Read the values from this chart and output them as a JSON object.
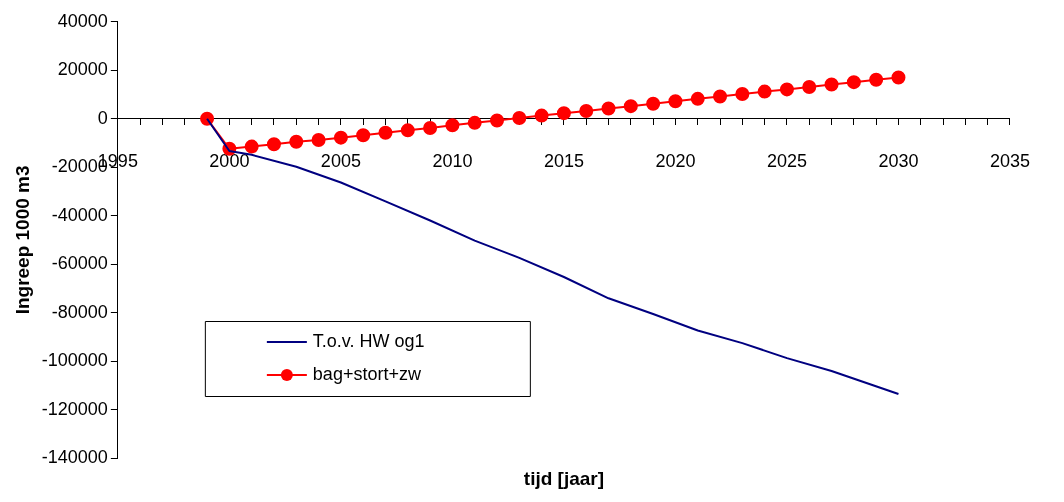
{
  "chart_data": {
    "type": "line",
    "xlabel": "tijd [jaar]",
    "ylabel": "Ingreep 1000 m3",
    "xlim": [
      1995,
      2035
    ],
    "xticks": [
      1995,
      {
        "value": 1996,
        "label": null
      },
      {
        "value": 1997,
        "label": null
      },
      {
        "value": 1998,
        "label": null
      },
      {
        "value": 1999,
        "label": null
      },
      2000,
      {
        "value": 2001,
        "label": null
      },
      {
        "value": 2002,
        "label": null
      },
      {
        "value": 2003,
        "label": null
      },
      {
        "value": 2004,
        "label": null
      },
      2005,
      {
        "value": 2006,
        "label": null
      },
      {
        "value": 2007,
        "label": null
      },
      {
        "value": 2008,
        "label": null
      },
      {
        "value": 2009,
        "label": null
      },
      2010,
      {
        "value": 2011,
        "label": null
      },
      {
        "value": 2012,
        "label": null
      },
      {
        "value": 2013,
        "label": null
      },
      {
        "value": 2014,
        "label": null
      },
      2015,
      {
        "value": 2016,
        "label": null
      },
      {
        "value": 2017,
        "label": null
      },
      {
        "value": 2018,
        "label": null
      },
      {
        "value": 2019,
        "label": null
      },
      2020,
      {
        "value": 2021,
        "label": null
      },
      {
        "value": 2022,
        "label": null
      },
      {
        "value": 2023,
        "label": null
      },
      {
        "value": 2024,
        "label": null
      },
      2025,
      {
        "value": 2026,
        "label": null
      },
      {
        "value": 2027,
        "label": null
      },
      {
        "value": 2028,
        "label": null
      },
      {
        "value": 2029,
        "label": null
      },
      2030,
      {
        "value": 2031,
        "label": null
      },
      {
        "value": 2032,
        "label": null
      },
      {
        "value": 2033,
        "label": null
      },
      {
        "value": 2034,
        "label": null
      },
      2035
    ],
    "ylim": [
      -140000,
      40000
    ],
    "yticks": [
      -140000,
      -120000,
      -100000,
      -80000,
      -60000,
      -40000,
      -20000,
      0,
      20000,
      40000
    ],
    "grid": false,
    "legend": "bottom left",
    "series": [
      {
        "name": "T.o.v. HW og1",
        "color": "#000080",
        "marker": "none",
        "x": [
          1999,
          2000,
          2001,
          2003,
          2005,
          2007,
          2009,
          2011,
          2013,
          2015,
          2017,
          2019,
          2021,
          2023,
          2025,
          2027,
          2030
        ],
        "values": [
          0,
          -13300,
          -14900,
          -19800,
          -26300,
          -34100,
          -42000,
          -50300,
          -57400,
          -65300,
          -74100,
          -80600,
          -87400,
          -92600,
          -98800,
          -104100,
          -113600
        ]
      },
      {
        "name": "bag+stort+zw",
        "color": "#ff0000",
        "marker": "circle",
        "x": [
          1999,
          2000,
          2001,
          2002,
          2003,
          2004,
          2005,
          2006,
          2007,
          2008,
          2009,
          2010,
          2011,
          2012,
          2013,
          2014,
          2015,
          2016,
          2017,
          2018,
          2019,
          2020,
          2021,
          2022,
          2023,
          2024,
          2025,
          2026,
          2027,
          2028,
          2029,
          2030
        ],
        "values": [
          0,
          -12400,
          -11500,
          -10500,
          -9500,
          -8800,
          -7800,
          -6800,
          -5800,
          -4800,
          -3800,
          -2700,
          -1700,
          -700,
          300,
          1300,
          2300,
          3200,
          4200,
          5200,
          6200,
          7200,
          8200,
          9200,
          10200,
          11200,
          12100,
          13100,
          14100,
          15100,
          16100,
          17000
        ]
      }
    ]
  }
}
